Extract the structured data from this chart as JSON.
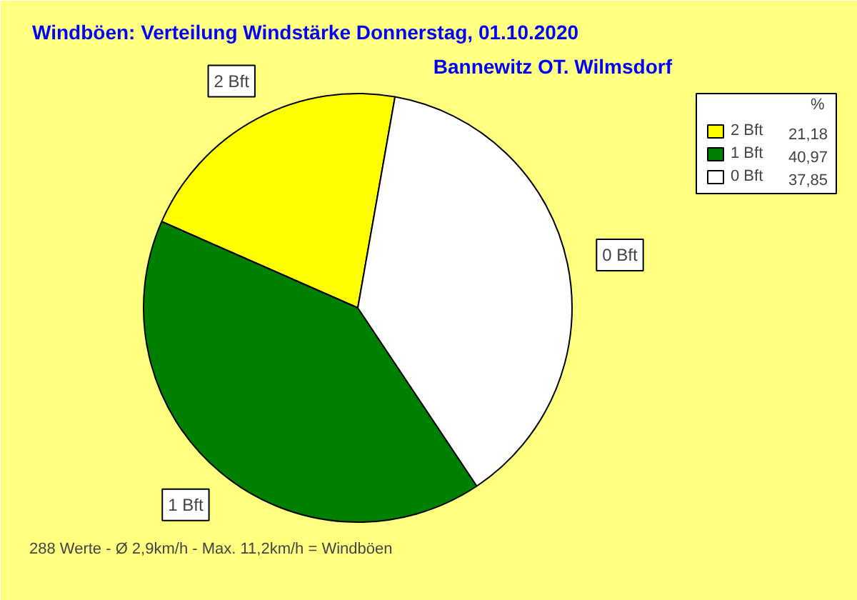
{
  "chart_data": {
    "type": "pie",
    "title": "Windböen: Verteilung Windstärke  Donnerstag, 01.10.2020",
    "subtitle": "Bannewitz OT. Wilmsdorf",
    "categories": [
      "2 Bft",
      "1 Bft",
      "0 Bft"
    ],
    "values": [
      21.18,
      40.97,
      37.85
    ],
    "colors": [
      "#ffff00",
      "#008000",
      "#ffffff"
    ],
    "value_labels": [
      "21,18",
      "40,97",
      "37,85"
    ],
    "legend_title": "%",
    "legend": "top right",
    "annotations": [
      "288 Werte   -   Ø 2,9km/h  -  Max. 11,2km/h = Windböen"
    ]
  }
}
